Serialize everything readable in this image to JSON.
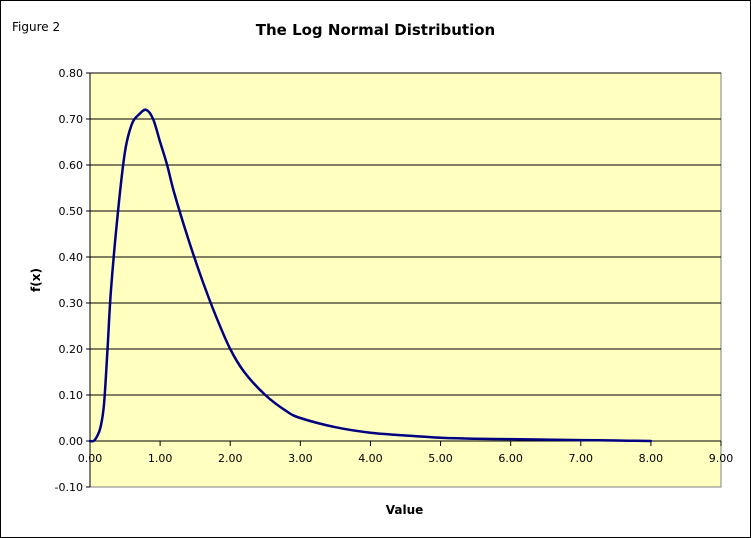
{
  "figure_label": "Figure 2",
  "colors": {
    "plot_background": "#ffffc0",
    "series_line": "#000080",
    "gridline": "#000000"
  },
  "chart_data": {
    "type": "scatter",
    "title": "The Log Normal Distribution",
    "xlabel": "Value",
    "ylabel": "f(x)",
    "xlim": [
      0,
      9
    ],
    "ylim": [
      -0.1,
      0.8
    ],
    "x_ticks": [
      "0.00",
      "1.00",
      "2.00",
      "3.00",
      "4.00",
      "5.00",
      "6.00",
      "7.00",
      "8.00",
      "9.00"
    ],
    "y_ticks": [
      "-0.10",
      "0.00",
      "0.10",
      "0.20",
      "0.30",
      "0.40",
      "0.50",
      "0.60",
      "0.70",
      "0.80"
    ],
    "grid": "horizontal major gridlines",
    "legend": "none",
    "series": [
      {
        "x": [
          0.0,
          0.05,
          0.1,
          0.15,
          0.2,
          0.25,
          0.3,
          0.4,
          0.5,
          0.6,
          0.7,
          0.8,
          0.9,
          1.0,
          1.1,
          1.2,
          1.4,
          1.6,
          1.8,
          2.0,
          2.2,
          2.5,
          2.8,
          3.0,
          3.5,
          4.0,
          4.5,
          5.0,
          5.5,
          6.0,
          6.5,
          7.0,
          7.5,
          8.0
        ],
        "y": [
          0.0,
          0.0,
          0.01,
          0.03,
          0.08,
          0.2,
          0.33,
          0.5,
          0.63,
          0.69,
          0.71,
          0.72,
          0.7,
          0.65,
          0.6,
          0.54,
          0.44,
          0.35,
          0.27,
          0.2,
          0.15,
          0.1,
          0.065,
          0.05,
          0.03,
          0.018,
          0.012,
          0.007,
          0.005,
          0.004,
          0.003,
          0.002,
          0.001,
          0.0
        ]
      }
    ]
  }
}
